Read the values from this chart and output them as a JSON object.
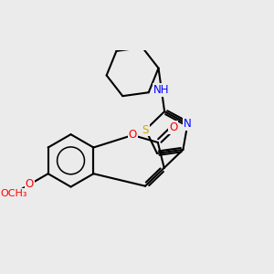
{
  "background_color": "#ebebeb",
  "bond_color": "#000000",
  "bond_width": 1.5,
  "atom_colors": {
    "O": "#ff0000",
    "N": "#0000ff",
    "S": "#ccaa00",
    "C": "#000000"
  },
  "font_size": 8.5,
  "fig_size": [
    3.0,
    3.0
  ],
  "dpi": 100
}
